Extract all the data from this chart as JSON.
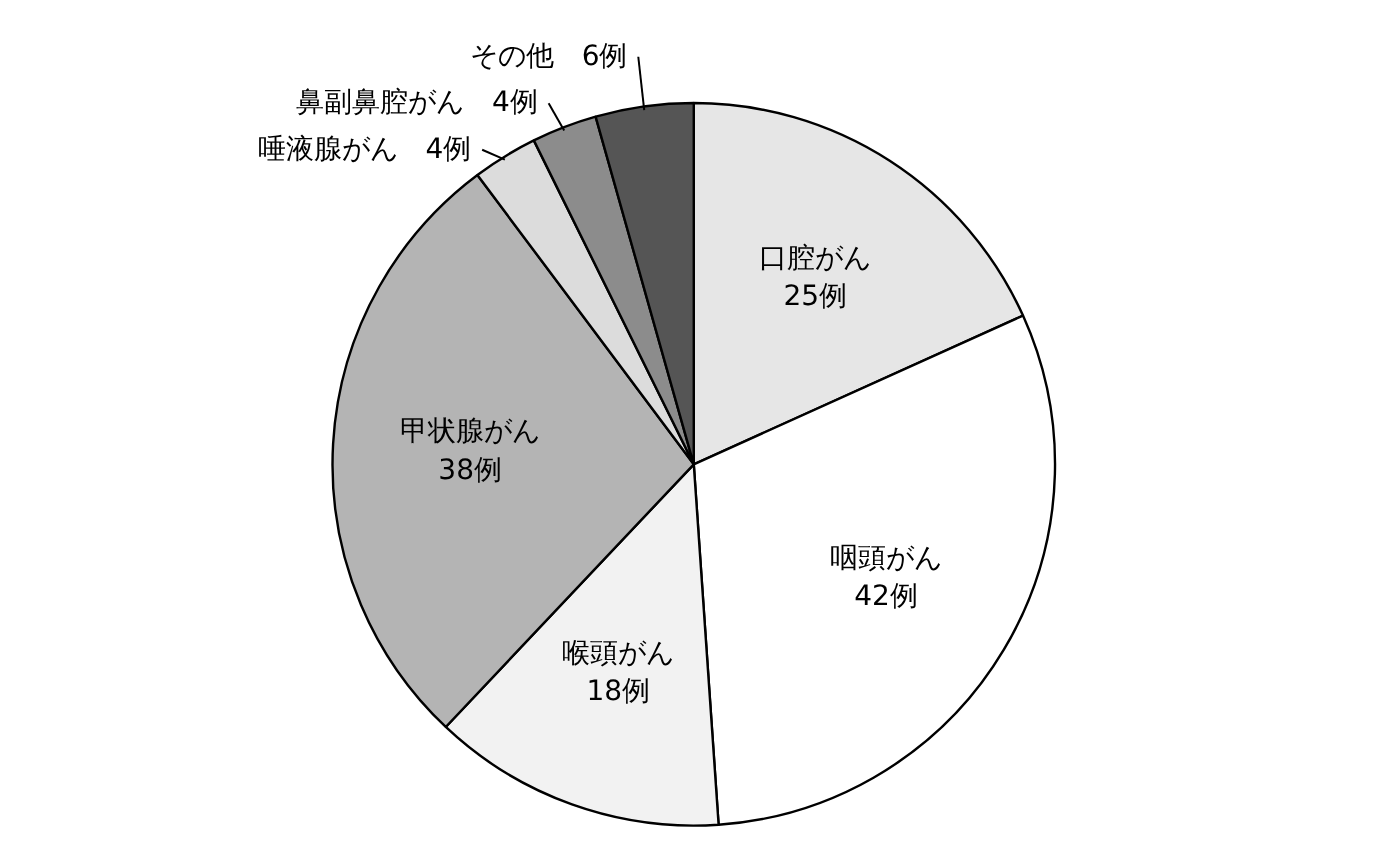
{
  "chart_data": {
    "type": "pie",
    "categories": [
      "口腔がん",
      "咽頭がん",
      "喉頭がん",
      "甲状腺がん",
      "唾液腺がん",
      "鼻副鼻腔がん",
      "その他"
    ],
    "values": [
      25,
      42,
      18,
      38,
      4,
      4,
      6
    ],
    "value_labels": [
      "25例",
      "42例",
      "18例",
      "38例",
      "4例",
      "4例",
      "6例"
    ],
    "colors": [
      "#e6e6e6",
      "#ffffff",
      "#f2f2f2",
      "#b4b4b4",
      "#dcdcdc",
      "#8c8c8c",
      "#555555"
    ]
  }
}
